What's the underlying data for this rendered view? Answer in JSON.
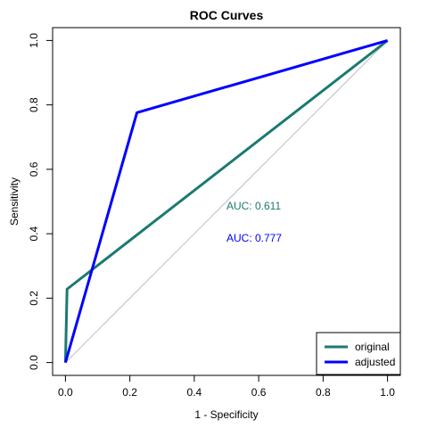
{
  "chart_data": {
    "type": "line",
    "title": "ROC Curves",
    "xlabel": "1 - Specificity",
    "ylabel": "Sensitivity",
    "xlim": [
      0,
      1
    ],
    "ylim": [
      0,
      1
    ],
    "x_ticks": [
      "0.0",
      "0.2",
      "0.4",
      "0.6",
      "0.8",
      "1.0"
    ],
    "y_ticks": [
      "0.0",
      "0.2",
      "0.4",
      "0.6",
      "0.8",
      "1.0"
    ],
    "grid": false,
    "legend_position": "bottom-right",
    "reference_line": {
      "x": [
        0,
        1
      ],
      "y": [
        0,
        1
      ],
      "color": "#bebebe"
    },
    "series": [
      {
        "name": "original",
        "color": "#1a7a72",
        "x": [
          0.0,
          0.005,
          1.0
        ],
        "y": [
          0.0,
          0.228,
          1.0
        ],
        "annotation": "AUC: 0.611"
      },
      {
        "name": "adjusted",
        "color": "#0000ff",
        "x": [
          0.0,
          0.222,
          1.0
        ],
        "y": [
          0.0,
          0.776,
          1.0
        ],
        "annotation": "AUC: 0.777"
      }
    ]
  }
}
